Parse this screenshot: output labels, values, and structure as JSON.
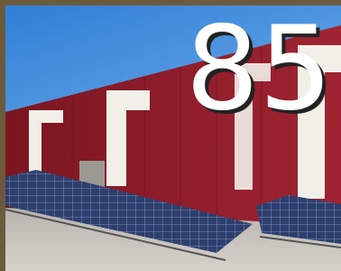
{
  "overlay_text": "85"
}
